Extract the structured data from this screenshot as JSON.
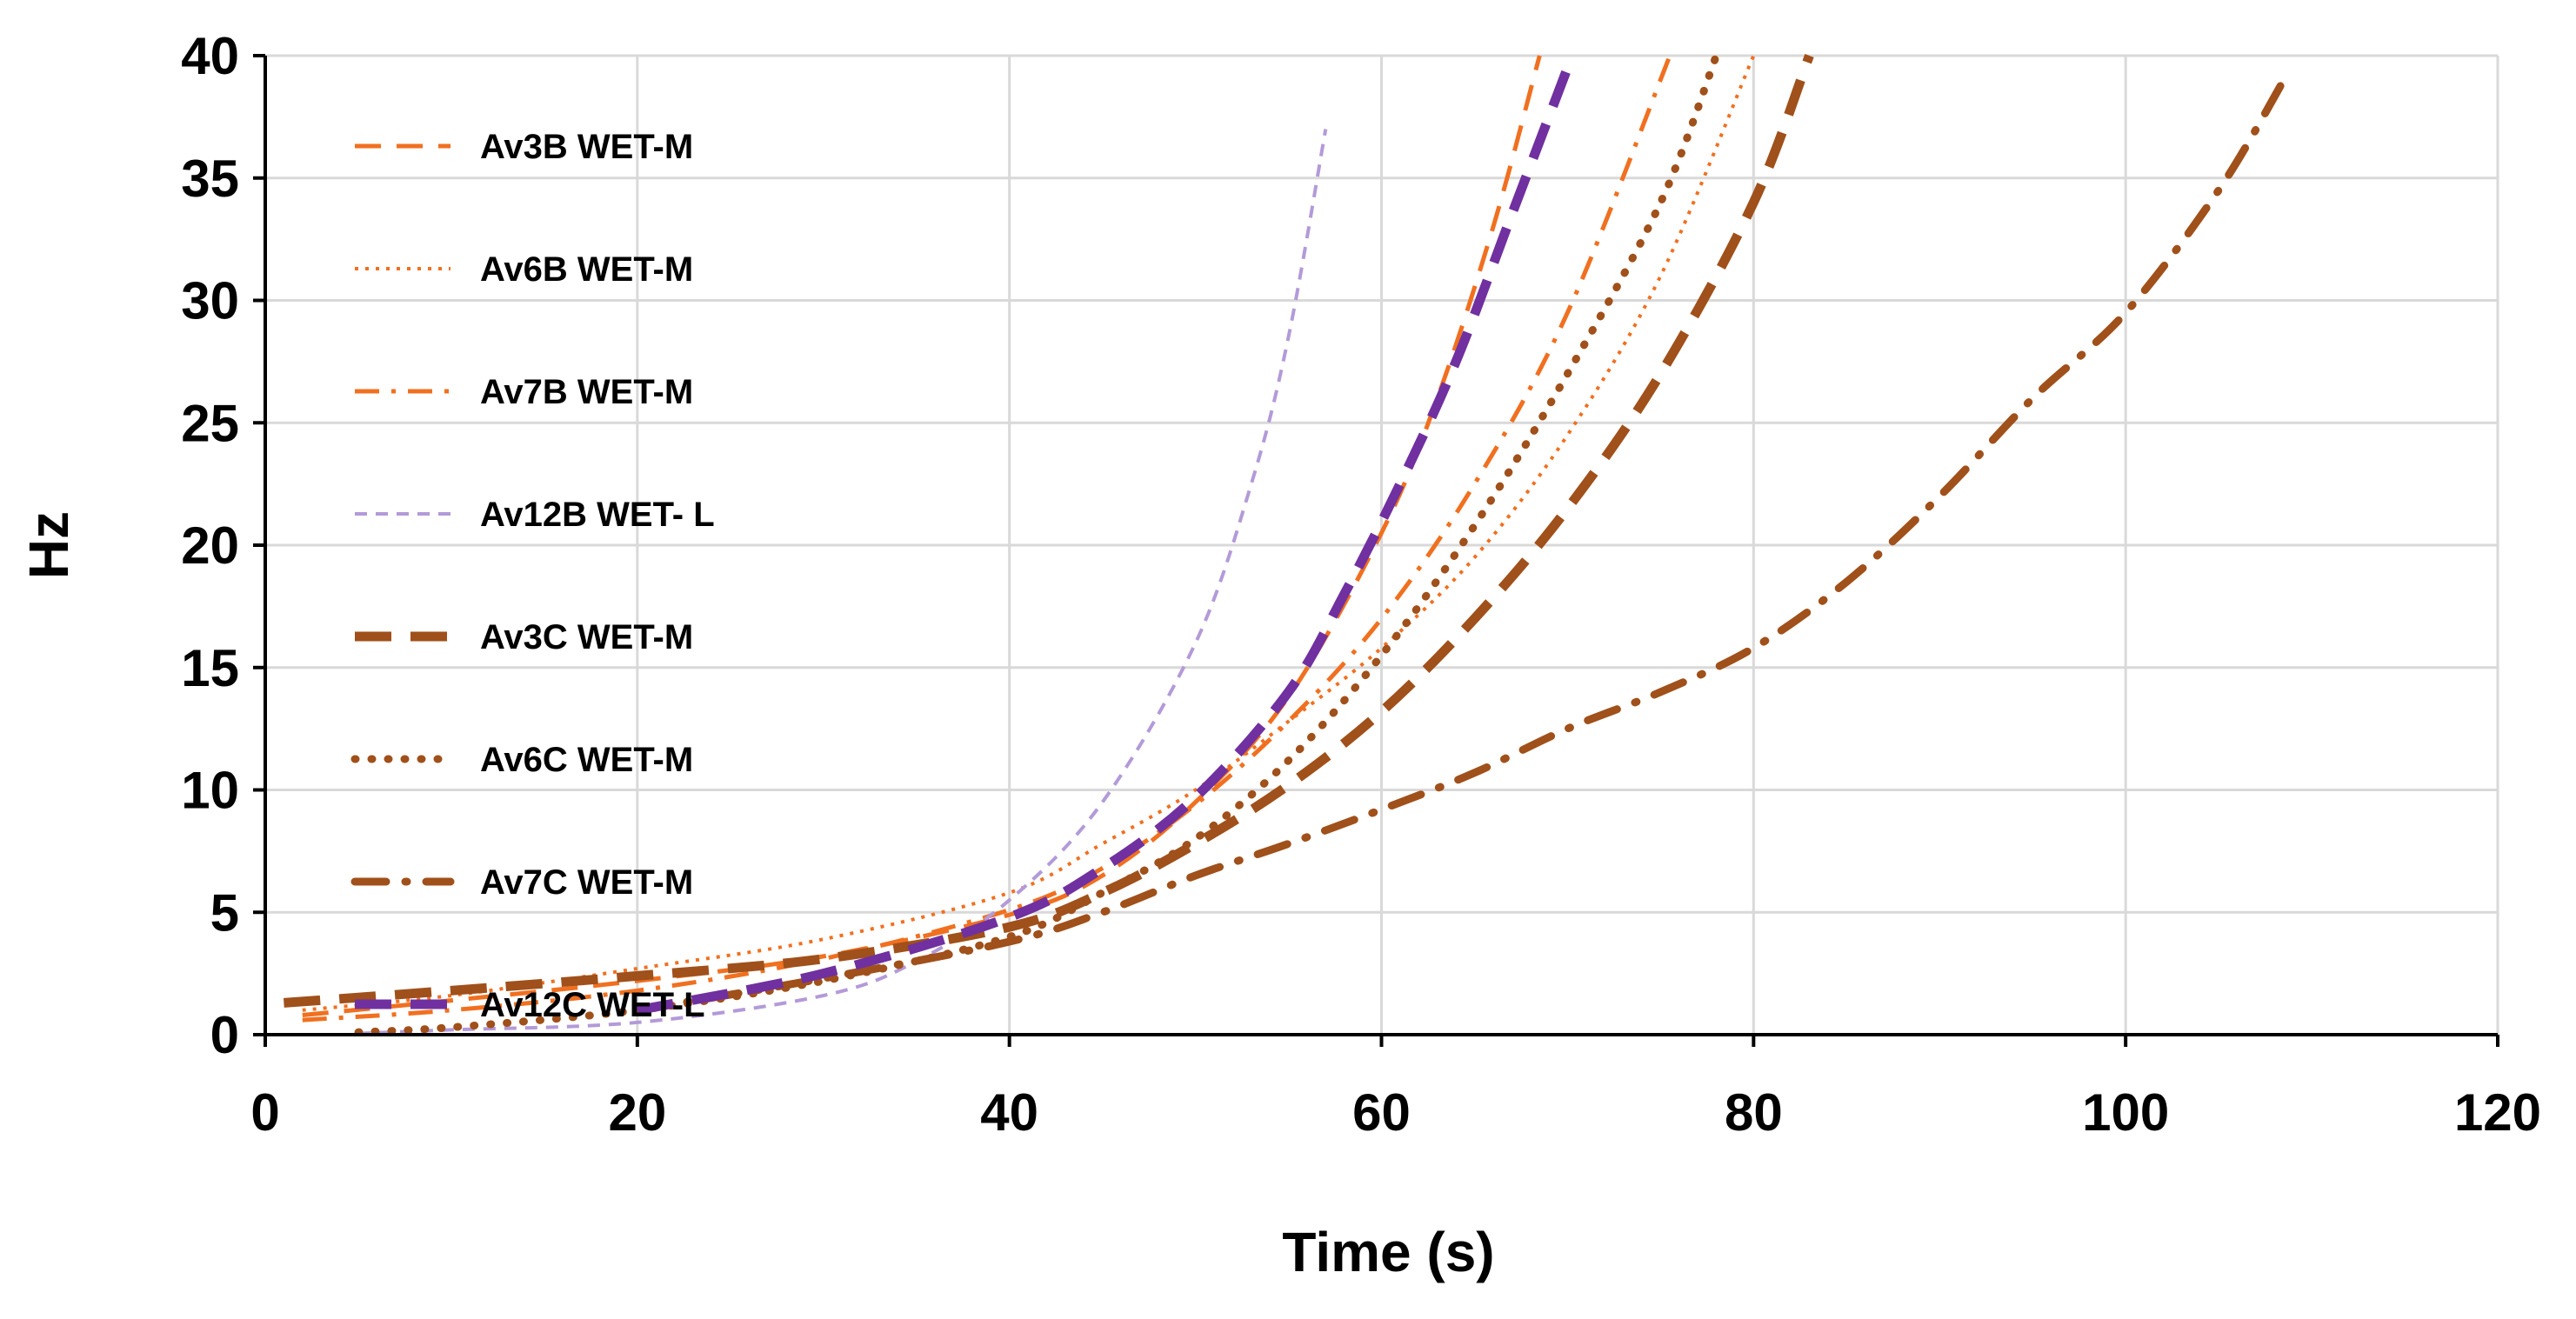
{
  "chart_data": {
    "type": "line",
    "title": "",
    "xlabel": "Time (s)",
    "ylabel": "Hz",
    "xlim": [
      0,
      120
    ],
    "ylim": [
      0,
      40
    ],
    "xticks": [
      "0",
      "20",
      "40",
      "60",
      "80",
      "100",
      "120"
    ],
    "yticks": [
      "0",
      "5",
      "10",
      "15",
      "20",
      "25",
      "30",
      "35",
      "40"
    ],
    "grid": true,
    "legend_position": "top-left",
    "series": [
      {
        "name": "Av3B WET-M",
        "color": "#f07020",
        "dash": "dash",
        "points": [
          [
            2,
            0.8
          ],
          [
            10,
            1.4
          ],
          [
            20,
            2.2
          ],
          [
            30,
            3.2
          ],
          [
            40,
            4.9
          ],
          [
            45,
            6.5
          ],
          [
            50,
            9.5
          ],
          [
            55,
            13.8
          ],
          [
            60,
            20.5
          ],
          [
            63,
            26
          ],
          [
            66,
            33
          ],
          [
            68.5,
            40
          ]
        ]
      },
      {
        "name": "Av6B WET-M",
        "color": "#f07020",
        "dash": "dot",
        "points": [
          [
            2,
            1
          ],
          [
            10,
            1.6
          ],
          [
            20,
            2.7
          ],
          [
            30,
            3.9
          ],
          [
            40,
            5.8
          ],
          [
            45,
            7.8
          ],
          [
            50,
            10
          ],
          [
            55,
            12.8
          ],
          [
            60,
            15.8
          ],
          [
            65,
            19.5
          ],
          [
            70,
            24.5
          ],
          [
            75,
            31
          ],
          [
            80,
            40
          ]
        ]
      },
      {
        "name": "Av7B WET-M",
        "color": "#f07020",
        "dash": "dashdot",
        "points": [
          [
            2,
            0.6
          ],
          [
            10,
            1
          ],
          [
            20,
            1.8
          ],
          [
            30,
            3.1
          ],
          [
            40,
            5.1
          ],
          [
            45,
            6.8
          ],
          [
            50,
            9.4
          ],
          [
            55,
            12.8
          ],
          [
            60,
            17
          ],
          [
            65,
            22.5
          ],
          [
            70,
            29.5
          ],
          [
            75.5,
            40
          ]
        ]
      },
      {
        "name": "Av12B WET- L",
        "color": "#b39ad8",
        "dash": "shortdash",
        "points": [
          [
            5,
            0.05
          ],
          [
            10,
            0.2
          ],
          [
            20,
            0.5
          ],
          [
            30,
            1.6
          ],
          [
            35,
            3
          ],
          [
            40,
            5.5
          ],
          [
            45,
            9.5
          ],
          [
            50,
            16
          ],
          [
            53,
            22.5
          ],
          [
            55,
            28.5
          ],
          [
            57,
            37
          ]
        ]
      },
      {
        "name": "Av3C WET-M",
        "color": "#a0501a",
        "dash": "longdash-thick",
        "points": [
          [
            1,
            1.3
          ],
          [
            10,
            1.8
          ],
          [
            20,
            2.4
          ],
          [
            30,
            3.1
          ],
          [
            40,
            4.4
          ],
          [
            45,
            5.8
          ],
          [
            50,
            7.8
          ],
          [
            55,
            10.2
          ],
          [
            60,
            13.2
          ],
          [
            65,
            17
          ],
          [
            70,
            21.5
          ],
          [
            75,
            27
          ],
          [
            80,
            34
          ],
          [
            83,
            40
          ]
        ]
      },
      {
        "name": "Av6C WET-M",
        "color": "#a0501a",
        "dash": "dot-thick",
        "points": [
          [
            5,
            0.1
          ],
          [
            10,
            0.3
          ],
          [
            20,
            1
          ],
          [
            30,
            2.2
          ],
          [
            40,
            4
          ],
          [
            45,
            5.8
          ],
          [
            50,
            8
          ],
          [
            55,
            11.2
          ],
          [
            60,
            15.5
          ],
          [
            65,
            20.8
          ],
          [
            70,
            27
          ],
          [
            75,
            34
          ],
          [
            78,
            40
          ]
        ]
      },
      {
        "name": "Av7C WET-M",
        "color": "#a0501a",
        "dash": "dashdot-thick",
        "points": [
          [
            20,
            1
          ],
          [
            30,
            2.3
          ],
          [
            40,
            3.8
          ],
          [
            45,
            5
          ],
          [
            50,
            6.5
          ],
          [
            55,
            7.8
          ],
          [
            60,
            9.2
          ],
          [
            65,
            10.7
          ],
          [
            70,
            12.5
          ],
          [
            75,
            14
          ],
          [
            80,
            15.8
          ],
          [
            85,
            18.5
          ],
          [
            90,
            22
          ],
          [
            95,
            26
          ],
          [
            100,
            29.5
          ],
          [
            105,
            34.5
          ],
          [
            108.5,
            39
          ]
        ]
      },
      {
        "name": "Av12C WET-L",
        "color": "#7030a0",
        "dash": "longdash-thick",
        "points": [
          [
            20,
            1
          ],
          [
            30,
            2.5
          ],
          [
            40,
            4.8
          ],
          [
            45,
            6.8
          ],
          [
            50,
            9.7
          ],
          [
            55,
            14
          ],
          [
            58,
            18
          ],
          [
            61,
            22.5
          ],
          [
            64,
            27.5
          ],
          [
            67,
            33.5
          ],
          [
            70,
            39.5
          ]
        ]
      }
    ]
  }
}
